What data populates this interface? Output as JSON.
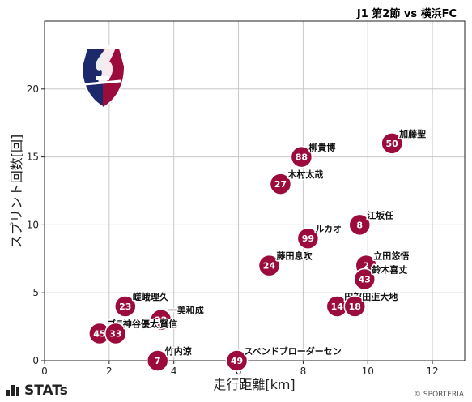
{
  "header": {
    "title": "J1 第2節 vs 横浜FC"
  },
  "footer": {
    "brand": "STATs",
    "copyright": "© SPORTERIA"
  },
  "colors": {
    "point": "#9b0c3c",
    "grid": "#c8c8c8",
    "frame": "#222222"
  },
  "chart_data": {
    "type": "scatter",
    "title": "J1 第2節 vs 横浜FC",
    "xlabel": "走行距離[km]",
    "ylabel": "スプリント回数[回]",
    "xlim": [
      0,
      13
    ],
    "ylim": [
      0,
      25
    ],
    "xticks": [
      0,
      2,
      4,
      6,
      8,
      10,
      12
    ],
    "yticks": [
      0,
      5,
      10,
      15,
      20
    ],
    "grid": true,
    "points": [
      {
        "number": "50",
        "name": "加藤聖",
        "x": 10.75,
        "y": 16
      },
      {
        "number": "88",
        "name": "柳貴博",
        "x": 7.95,
        "y": 15
      },
      {
        "number": "27",
        "name": "木村太哉",
        "x": 7.3,
        "y": 13
      },
      {
        "number": "8",
        "name": "江坂任",
        "x": 9.75,
        "y": 10
      },
      {
        "number": "99",
        "name": "ルカオ",
        "x": 8.15,
        "y": 9
      },
      {
        "number": "24",
        "name": "藤田息吹",
        "x": 6.95,
        "y": 7
      },
      {
        "number": "2",
        "name": "立田悠悟",
        "x": 9.95,
        "y": 7
      },
      {
        "number": "43",
        "name": "鈴木喜丈",
        "x": 9.9,
        "y": 6
      },
      {
        "number": "14",
        "name": "田部井涼",
        "x": 9.05,
        "y": 4
      },
      {
        "number": "18",
        "name": "田上大地",
        "x": 9.6,
        "y": 4
      },
      {
        "number": "23",
        "name": "嵯峨理久",
        "x": 2.5,
        "y": 4
      },
      {
        "number": "22",
        "name": "一美和成",
        "x": 3.6,
        "y": 3
      },
      {
        "number": "45",
        "name": "ブラウンノア賢信",
        "x": 1.7,
        "y": 2
      },
      {
        "number": "33",
        "name": "神谷優太",
        "x": 2.2,
        "y": 2
      },
      {
        "number": "7",
        "name": "竹内涼",
        "x": 3.5,
        "y": 0
      },
      {
        "number": "49",
        "name": "スベンドブローダーセン",
        "x": 5.95,
        "y": 0
      }
    ]
  }
}
